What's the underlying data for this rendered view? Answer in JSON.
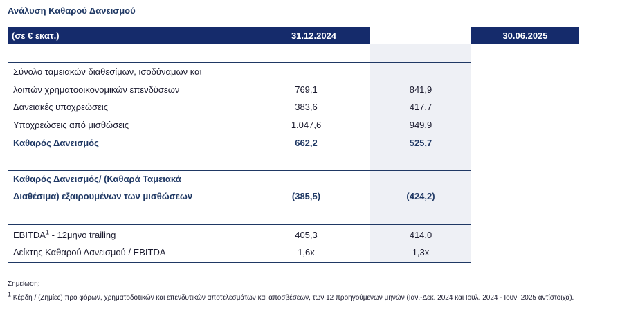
{
  "title": "Ανάλυση Καθαρού Δανεισμού",
  "header": {
    "unit": "(σε € εκατ.)",
    "col1": "31.12.2024",
    "col2": "30.06.2025"
  },
  "rows": {
    "cash_line1": "Σύνολο ταμειακών διαθεσίμων, ισοδύναμων και",
    "cash_line2": "λοιπών χρηματοοικονομικών επενδύσεων",
    "cash_v1": "769,1",
    "cash_v2": "841,9",
    "loans_label": "Δανειακές υποχρεώσεις",
    "loans_v1": "383,6",
    "loans_v2": "417,7",
    "lease_label": "Υποχρεώσεις από μισθώσεις",
    "lease_v1": "1.047,6",
    "lease_v2": "949,9",
    "net_label": "Καθαρός Δανεισμός",
    "net_v1": "662,2",
    "net_v2": "525,7",
    "netcash_line1": "Καθαρός Δανεισμός/ (Καθαρά Ταμειακά",
    "netcash_line2": "Διαθέσιμα) εξαιρουμένων των μισθώσεων",
    "netcash_v1": "(385,5)",
    "netcash_v2": "(424,2)",
    "ebitda_label": "EBITDA",
    "ebitda_sup": "1",
    "ebitda_suffix": " - 12μηνο trailing",
    "ebitda_v1": "405,3",
    "ebitda_v2": "414,0",
    "ratio_label": "Δείκτης Καθαρού Δανεισμού / EBITDA",
    "ratio_v1": "1,6x",
    "ratio_v2": "1,3x"
  },
  "notes": {
    "heading": "Σημείωση:",
    "sup": "1",
    "text": " Κέρδη / (Ζημίες) προ φόρων, χρηματοδοτικών και επενδυτικών αποτελεσμάτων και αποσβέσεων, των 12 προηγούμενων μηνών (Ιαν.-Δεκ. 2024 και Ιουλ. 2024 - Ιουν. 2025 αντίστοιχα)."
  }
}
